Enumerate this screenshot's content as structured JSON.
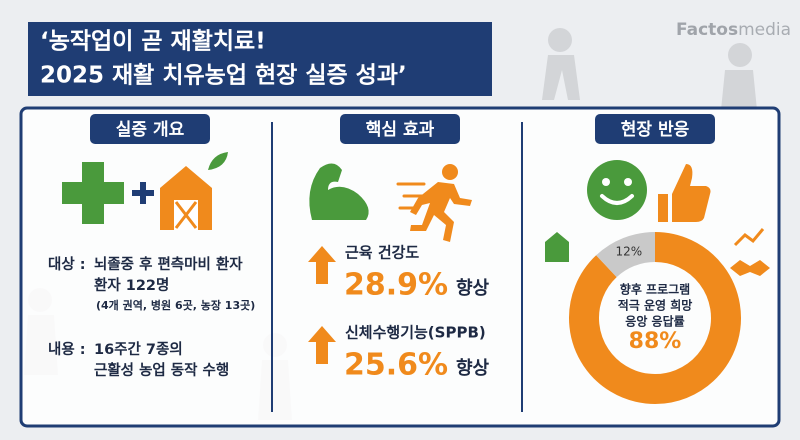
{
  "header": {
    "title_lines": [
      "‘농작업이 곧 재활치료!",
      "2025 재활 치유농업 현장 실증 성과’"
    ],
    "brand": [
      "Factos",
      "media"
    ]
  },
  "sections": [
    {
      "heading": "실증 개요",
      "items": [
        {
          "label": "대상 :",
          "lines": [
            "뇌졸중 후 편측마비 환자",
            "환자 122명",
            "(4개 권역, 병원 6곳, 농장 13곳)"
          ]
        },
        {
          "label": "내용 :",
          "lines": [
            "16주간 7종의",
            "근활성 농업 동작 수행"
          ]
        }
      ]
    },
    {
      "heading": "핵심 효과",
      "effects": [
        {
          "label": "근육 건강도",
          "value": "28.9%",
          "suffix": "향상"
        },
        {
          "label": "신체수행기능(SPPB)",
          "value": "25.6%",
          "suffix": "향상"
        }
      ]
    },
    {
      "heading": "현장 반응",
      "donut": {
        "values": [
          88,
          12
        ],
        "value_labels": [
          "88%",
          "12%"
        ],
        "colors": [
          "#f08a1c",
          "#c9c9c9"
        ],
        "center_lines": [
          "향후 프로그램",
          "적극 운영 희망",
          "응앙 응답률"
        ]
      }
    }
  ]
}
